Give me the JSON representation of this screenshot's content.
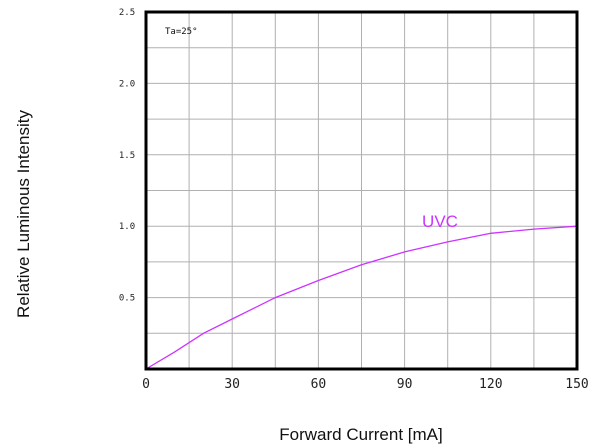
{
  "chart_data": {
    "type": "line",
    "title": "",
    "xlabel": "Forward Current  [mA]",
    "ylabel": "Relative Luminous Intensity",
    "xlim": [
      0,
      150
    ],
    "ylim": [
      0,
      2.5
    ],
    "x_ticks": [
      0,
      30,
      60,
      90,
      120,
      150
    ],
    "x_tick_labels": [
      "0",
      "30",
      "60",
      "90",
      "120",
      "150"
    ],
    "x_grid_step": 15,
    "y_ticks": [
      0.5,
      1.0,
      1.5,
      2.0,
      2.5
    ],
    "y_tick_labels": [
      "0.5",
      "1.0",
      "1.5",
      "2.0",
      "2.5"
    ],
    "y_grid_step": 0.25,
    "grid": true,
    "annotation": "Ta=25°",
    "series": [
      {
        "name": "UVC",
        "color": "#cc33ff",
        "x": [
          0,
          10,
          20,
          30,
          45,
          60,
          75,
          90,
          105,
          120,
          135,
          150
        ],
        "y": [
          0,
          0.12,
          0.25,
          0.35,
          0.5,
          0.62,
          0.73,
          0.82,
          0.89,
          0.95,
          0.98,
          1.0
        ]
      }
    ]
  }
}
